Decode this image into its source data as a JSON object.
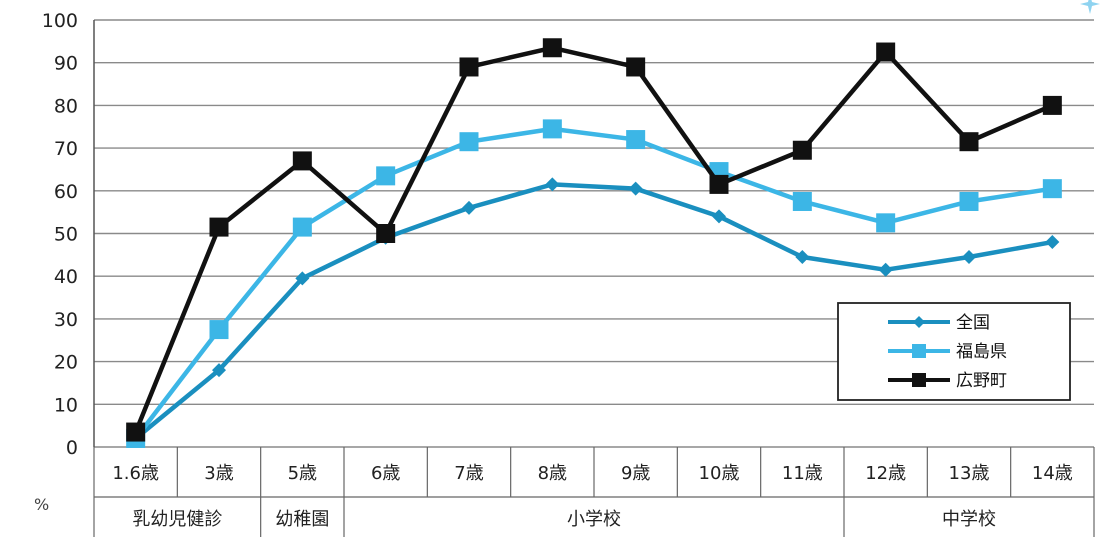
{
  "chart_data": {
    "type": "line",
    "ylabel": "%",
    "ylim": [
      0,
      100
    ],
    "yticks": [
      0,
      10,
      20,
      30,
      40,
      50,
      60,
      70,
      80,
      90,
      100
    ],
    "grid": true,
    "legend_position": "right",
    "categories": [
      "1.6歳",
      "3歳",
      "5歳",
      "6歳",
      "7歳",
      "8歳",
      "9歳",
      "10歳",
      "11歳",
      "12歳",
      "13歳",
      "14歳"
    ],
    "groups": [
      {
        "label": "乳幼児健診",
        "span": [
          0,
          1
        ]
      },
      {
        "label": "幼稚園",
        "span": [
          2,
          2
        ]
      },
      {
        "label": "小学校",
        "span": [
          3,
          8
        ]
      },
      {
        "label": "中学校",
        "span": [
          9,
          11
        ]
      }
    ],
    "series": [
      {
        "name": "全国",
        "color": "#1a8fbf",
        "marker": "diamond",
        "values": [
          2,
          18,
          39.5,
          49,
          56,
          61.5,
          60.5,
          54,
          44.5,
          41.5,
          44.5,
          48
        ]
      },
      {
        "name": "福島県",
        "color": "#3cb6e6",
        "marker": "square",
        "values": [
          2,
          27.5,
          51.5,
          63.5,
          71.5,
          74.5,
          72,
          64.5,
          57.5,
          52.5,
          57.5,
          60.5
        ]
      },
      {
        "name": "広野町",
        "color": "#111111",
        "marker": "square",
        "values": [
          3.5,
          51.5,
          67,
          50,
          89,
          93.5,
          89,
          61.5,
          69.5,
          92.5,
          71.5,
          80
        ]
      }
    ]
  }
}
